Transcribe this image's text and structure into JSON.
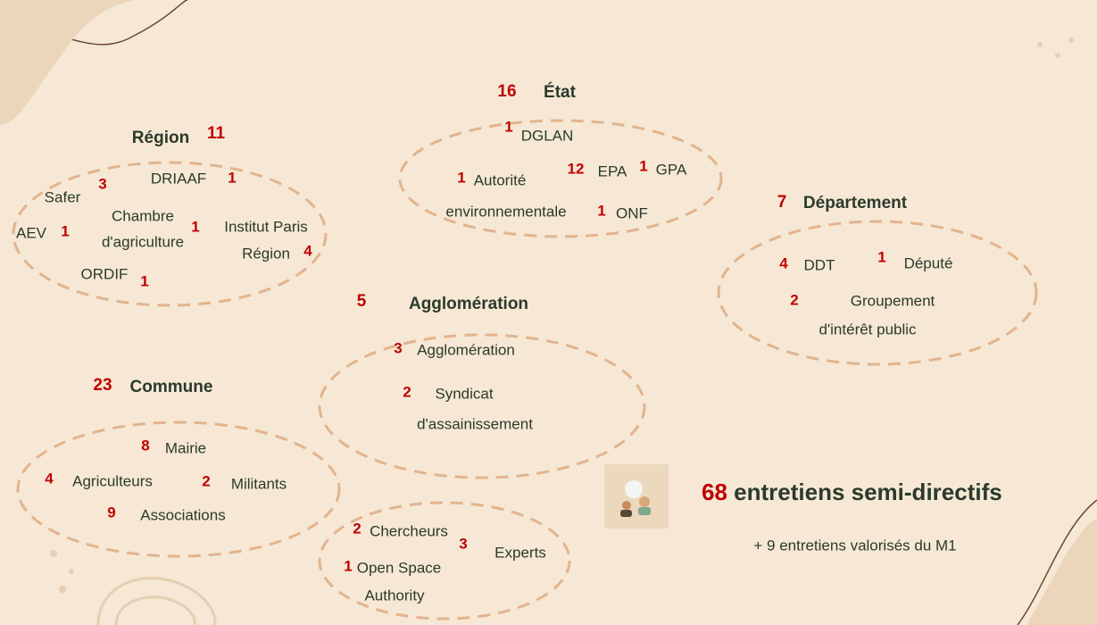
{
  "groups": [
    {
      "title": "Région",
      "count": 11,
      "items": [
        {
          "count": 3,
          "label": [
            "Safer"
          ]
        },
        {
          "count": 1,
          "label": [
            "DRIAAF"
          ]
        },
        {
          "count": 1,
          "label": [
            "AEV"
          ]
        },
        {
          "count": 1,
          "label": [
            "Chambre",
            "d'agriculture"
          ]
        },
        {
          "count": 4,
          "label": [
            "Institut Paris",
            "Région"
          ]
        },
        {
          "count": 1,
          "label": [
            "ORDIF"
          ]
        }
      ]
    },
    {
      "title": "État",
      "count": 16,
      "items": [
        {
          "count": 1,
          "label": [
            "DGLAN"
          ]
        },
        {
          "count": 1,
          "label": [
            "Autorité",
            "environnementale"
          ]
        },
        {
          "count": 12,
          "label": [
            "EPA"
          ]
        },
        {
          "count": 1,
          "label": [
            "GPA"
          ]
        },
        {
          "count": 1,
          "label": [
            "ONF"
          ]
        }
      ]
    },
    {
      "title": "Département",
      "count": 7,
      "items": [
        {
          "count": 4,
          "label": [
            "DDT"
          ]
        },
        {
          "count": 1,
          "label": [
            "Député"
          ]
        },
        {
          "count": 2,
          "label": [
            "Groupement",
            "d'intérêt public"
          ]
        }
      ]
    },
    {
      "title": "Agglomération",
      "count": 5,
      "items": [
        {
          "count": 3,
          "label": [
            "Agglomération"
          ]
        },
        {
          "count": 2,
          "label": [
            "Syndicat",
            "d'assainissement"
          ]
        }
      ]
    },
    {
      "title": "Commune",
      "count": 23,
      "items": [
        {
          "count": 8,
          "label": [
            "Mairie"
          ]
        },
        {
          "count": 4,
          "label": [
            "Agriculteurs"
          ]
        },
        {
          "count": 2,
          "label": [
            "Militants"
          ]
        },
        {
          "count": 9,
          "label": [
            "Associations"
          ]
        }
      ]
    },
    {
      "items": [
        {
          "count": 2,
          "label": [
            "Chercheurs"
          ]
        },
        {
          "count": 3,
          "label": [
            "Experts"
          ]
        },
        {
          "count": 1,
          "label": [
            "Open Space",
            "Authority"
          ]
        }
      ]
    }
  ],
  "summary": {
    "count": 68,
    "label": "entretiens semi-directifs",
    "note": "+ 9 entretiens valorisés du M1"
  }
}
